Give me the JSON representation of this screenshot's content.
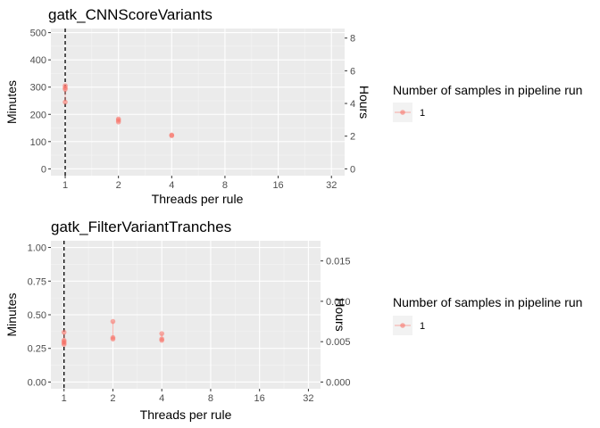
{
  "chart_data": [
    {
      "type": "scatter",
      "title": "gatk_CNNScoreVariants",
      "xlabel": "Threads per rule",
      "ylabel": "Minutes",
      "ylabel_secondary": "Hours",
      "x_scale": "log2",
      "x_ticks": [
        1,
        2,
        4,
        8,
        16,
        32
      ],
      "x_tick_labels": [
        "1",
        "2",
        "4",
        "8",
        "16",
        "32"
      ],
      "xlim": [
        0.83,
        38
      ],
      "ylim": [
        -25,
        515
      ],
      "y_ticks": [
        0,
        100,
        200,
        300,
        400,
        500
      ],
      "y_tick_labels": [
        "0",
        "100",
        "200",
        "300",
        "400",
        "500"
      ],
      "y2_ticks": [
        0,
        2,
        4,
        6,
        8
      ],
      "y2_tick_labels": [
        "0",
        "2",
        "4",
        "6",
        "8"
      ],
      "y2_scale_factor": 60,
      "reference_line_x": 1,
      "grid": true,
      "legend": {
        "title": "Number of samples in pipeline run",
        "position": "right"
      },
      "series": [
        {
          "name": "1",
          "color": "#f8766d",
          "points": [
            {
              "x": 1,
              "y": 305
            },
            {
              "x": 1,
              "y": 298
            },
            {
              "x": 1,
              "y": 292
            },
            {
              "x": 1,
              "y": 245
            },
            {
              "x": 2,
              "y": 183
            },
            {
              "x": 2,
              "y": 178
            },
            {
              "x": 2,
              "y": 172
            },
            {
              "x": 4,
              "y": 124
            },
            {
              "x": 4,
              "y": 122
            }
          ]
        }
      ]
    },
    {
      "type": "scatter",
      "title": "gatk_FilterVariantTranches",
      "xlabel": "Threads per rule",
      "ylabel": "Minutes",
      "ylabel_secondary": "Hours",
      "x_scale": "log2",
      "x_ticks": [
        1,
        2,
        4,
        8,
        16,
        32
      ],
      "x_tick_labels": [
        "1",
        "2",
        "4",
        "8",
        "16",
        "32"
      ],
      "xlim": [
        0.83,
        38
      ],
      "ylim": [
        -0.05,
        1.05
      ],
      "y_ticks": [
        0,
        0.25,
        0.5,
        0.75,
        1.0
      ],
      "y_tick_labels": [
        "0.00",
        "0.25",
        "0.50",
        "0.75",
        "1.00"
      ],
      "y2_ticks": [
        0,
        0.005,
        0.01,
        0.015
      ],
      "y2_tick_labels": [
        "0.000",
        "0.005",
        "0.010",
        "0.015"
      ],
      "y2_scale_factor": 60,
      "reference_line_x": 1,
      "grid": true,
      "legend": {
        "title": "Number of samples in pipeline run",
        "position": "right"
      },
      "series": [
        {
          "name": "1",
          "color": "#f8766d",
          "points": [
            {
              "x": 1,
              "y": 0.37
            },
            {
              "x": 1,
              "y": 0.31
            },
            {
              "x": 1,
              "y": 0.3
            },
            {
              "x": 1,
              "y": 0.29
            },
            {
              "x": 1,
              "y": 0.28
            },
            {
              "x": 2,
              "y": 0.45
            },
            {
              "x": 2,
              "y": 0.33
            },
            {
              "x": 2,
              "y": 0.32
            },
            {
              "x": 4,
              "y": 0.36
            },
            {
              "x": 4,
              "y": 0.32
            },
            {
              "x": 4,
              "y": 0.31
            }
          ]
        }
      ]
    }
  ]
}
